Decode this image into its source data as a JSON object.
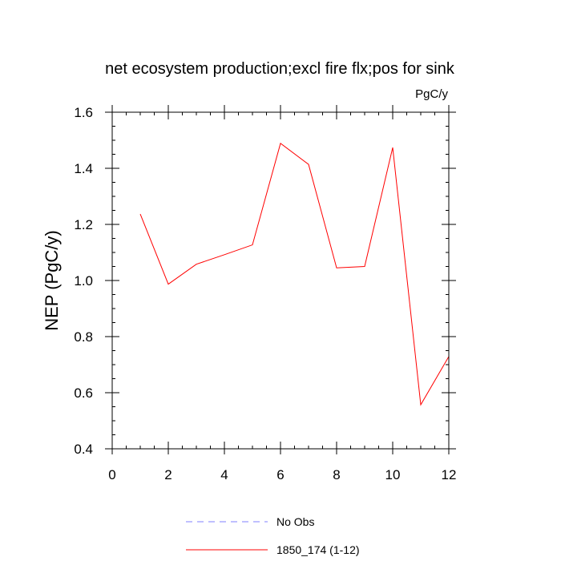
{
  "chart_data": {
    "type": "line",
    "title": "net ecosystem production;excl fire flx;pos for sink",
    "units": "PgC/y",
    "ylabel": "NEP  (PgC/y)",
    "xlabel": "",
    "xlim": [
      0,
      12
    ],
    "ylim": [
      0.4,
      1.6
    ],
    "xticks": [
      "0",
      "2",
      "4",
      "6",
      "8",
      "10",
      "12"
    ],
    "yticks": [
      "0.4",
      "0.6",
      "0.8",
      "1.0",
      "1.2",
      "1.4",
      "1.6"
    ],
    "grid": false,
    "legend_position": "bottom",
    "series": [
      {
        "name": "No Obs",
        "color": "#8080ff",
        "style": "dashed",
        "x": [],
        "y": []
      },
      {
        "name": "1850_174 (1-12)",
        "color": "#ff0000",
        "style": "solid",
        "x": [
          1,
          2,
          3,
          4,
          5,
          6,
          7,
          8,
          9,
          10,
          11,
          12
        ],
        "y": [
          1.237,
          0.987,
          1.058,
          1.092,
          1.127,
          1.489,
          1.414,
          1.045,
          1.05,
          1.474,
          0.557,
          0.729
        ]
      }
    ]
  }
}
